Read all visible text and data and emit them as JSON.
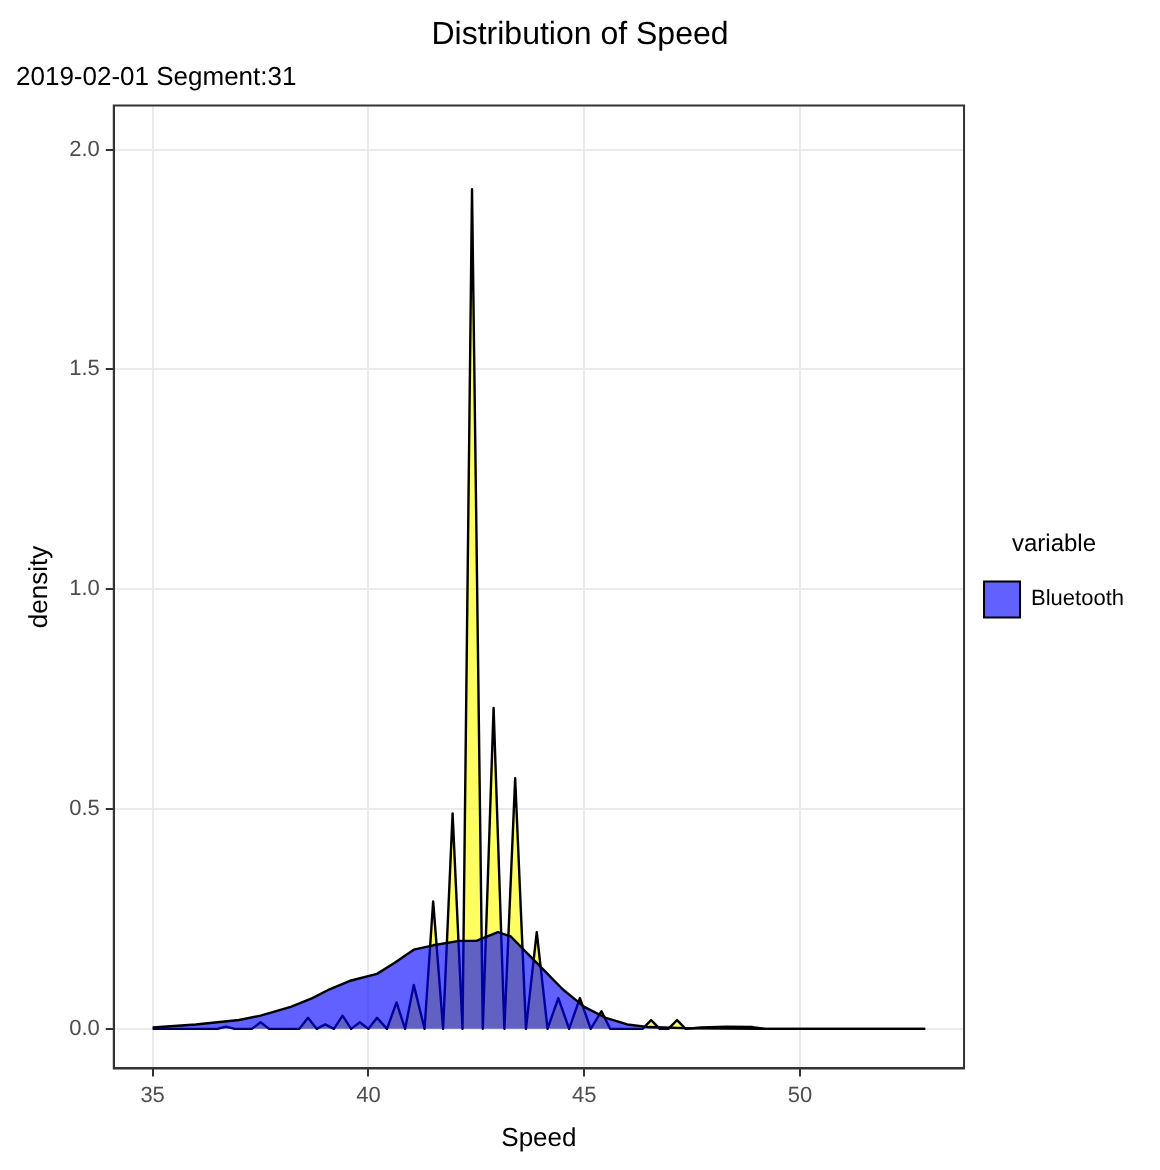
{
  "chart_data": {
    "type": "area",
    "title": "Distribution of Speed",
    "subtitle": "2019-02-01 Segment:31",
    "xlabel": "Speed",
    "ylabel": "density",
    "legend_title": "variable",
    "legend": "right",
    "grid": true,
    "marker": "none",
    "xlim": [
      34.1,
      53.8
    ],
    "xticks": [
      35,
      40,
      45,
      50
    ],
    "ylim": [
      -0.09,
      2.1
    ],
    "yticks": [
      {
        "value": 0,
        "label": "0.0"
      },
      {
        "value": 0.5,
        "label": "0.5"
      },
      {
        "value": 1,
        "label": "1.0"
      },
      {
        "value": 1.5,
        "label": "1.5"
      },
      {
        "value": 2,
        "label": "2.0"
      }
    ],
    "series": [
      {
        "name": "Bluetooth",
        "color": "#0000ff",
        "x": [
          35,
          36,
          37,
          37.5,
          38.2,
          38.7,
          39.1,
          39.6,
          40.2,
          40.6,
          41.05,
          41.5,
          42.1,
          42.5,
          43.0,
          43.3,
          43.7,
          44.1,
          44.5,
          45.0,
          45.5,
          46.0,
          46.5,
          47.5,
          49,
          52.9
        ],
        "values": [
          0.003,
          0.01,
          0.02,
          0.03,
          0.05,
          0.07,
          0.09,
          0.11,
          0.125,
          0.15,
          0.18,
          0.19,
          0.2,
          0.2,
          0.22,
          0.21,
          0.17,
          0.13,
          0.09,
          0.05,
          0.025,
          0.01,
          0.004,
          0.001,
          0,
          0
        ]
      },
      {
        "color": "#ffff00",
        "x": [
          35,
          36.5,
          36.7,
          36.9,
          37.3,
          37.5,
          37.7,
          38.4,
          38.6,
          38.8,
          39.0,
          39.2,
          39.4,
          39.6,
          39.8,
          40.0,
          40.2,
          40.43,
          40.65,
          40.85,
          41.05,
          41.3,
          41.5,
          41.73,
          41.95,
          42.18,
          42.4,
          42.65,
          42.9,
          43.15,
          43.4,
          43.65,
          43.9,
          44.15,
          44.4,
          44.65,
          44.9,
          45.15,
          45.4,
          45.6,
          46.35,
          46.55,
          46.75,
          46.95,
          47.15,
          47.35,
          47.7,
          48.3,
          48.9,
          49.2,
          52.9
        ],
        "values": [
          0,
          0,
          0.005,
          0,
          0,
          0.015,
          0,
          0,
          0.025,
          0,
          0.01,
          0,
          0.03,
          0,
          0.015,
          0,
          0.025,
          0,
          0.06,
          0,
          0.1,
          0,
          0.29,
          0,
          0.49,
          0,
          1.91,
          0,
          0.73,
          0,
          0.57,
          0,
          0.22,
          0,
          0.07,
          0,
          0.07,
          0,
          0.04,
          0,
          0,
          0.02,
          0,
          0,
          0.02,
          0,
          0.003,
          0.005,
          0.004,
          0,
          0
        ]
      }
    ]
  }
}
